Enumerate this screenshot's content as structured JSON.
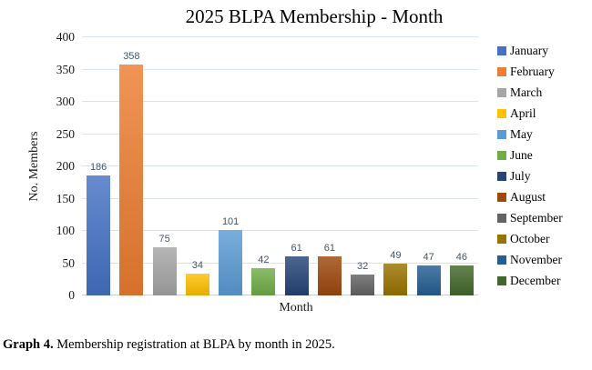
{
  "chart_data": {
    "type": "bar",
    "title": "2025 BLPA Membership - Month",
    "xlabel": "Month",
    "ylabel": "No. Members",
    "ylim": [
      0,
      400
    ],
    "yticks": [
      0,
      50,
      100,
      150,
      200,
      250,
      300,
      350,
      400
    ],
    "grid": true,
    "legend_position": "right",
    "categories": [
      "January",
      "February",
      "March",
      "April",
      "May",
      "June",
      "July",
      "August",
      "September",
      "October",
      "November",
      "December"
    ],
    "values": [
      186,
      358,
      75,
      34,
      101,
      42,
      61,
      61,
      32,
      49,
      47,
      46
    ],
    "colors": [
      "#4472C4",
      "#ED7D31",
      "#A5A5A5",
      "#FFC000",
      "#5B9BD5",
      "#70AD47",
      "#264478",
      "#9E480E",
      "#636363",
      "#997300",
      "#255E91",
      "#43682B"
    ],
    "data_label_color": "#44546A",
    "gridline_color": "#D9E1F2",
    "axis_line_color": "#C3CDDB"
  },
  "caption": {
    "label": "Graph 4.",
    "text": " Membership registration at BLPA by month in 2025."
  }
}
